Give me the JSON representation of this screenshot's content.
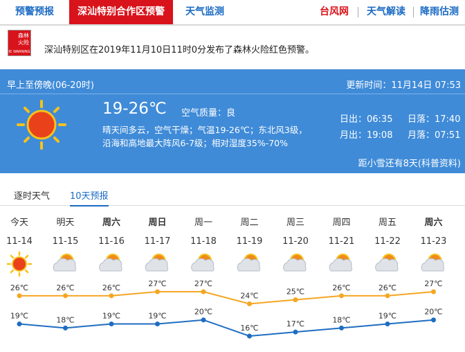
{
  "nav": {
    "left": [
      "预警预报",
      "深汕特别合作区预警",
      "天气监测"
    ],
    "right": [
      "台风网",
      "天气解读",
      "降雨估测"
    ]
  },
  "warning": {
    "icon_top": "森林火险",
    "icon_bottom": "红 WARNING",
    "text": "深汕特别区在2019年11月10日11时0分发布了森林火险红色预警。"
  },
  "today": {
    "period": "早上至傍晚(06-20时)",
    "updated": "更新时间：11月14日 07:53",
    "temp": "19-26℃",
    "air": "空气质量：良",
    "desc1": "晴天间多云，空气干燥；气温19-26℃；东北风3级，",
    "desc2": "沿海和高地最大阵风6-7级；相对湿度35%-70%",
    "sunrise": "日出：06:35",
    "sunset": "日落：17:40",
    "moonrise": "月出：19:08",
    "moonset": "月落：07:51",
    "solar_term": "距小雪还有8天(科普资料)"
  },
  "forecast_tabs": [
    "逐时天气",
    "10天预报"
  ],
  "forecast": {
    "days": [
      "今天",
      "明天",
      "周六",
      "周日",
      "周一",
      "周二",
      "周三",
      "周四",
      "周五",
      "周六"
    ],
    "dates": [
      "11-14",
      "11-15",
      "11-16",
      "11-17",
      "11-18",
      "11-19",
      "11-20",
      "11-21",
      "11-22",
      "11-23"
    ],
    "high": {
      "color": "#f5a623",
      "values": [
        26,
        26,
        26,
        27,
        27,
        24,
        25,
        26,
        26,
        27
      ],
      "value_labels": [
        "26℃",
        "26℃",
        "26℃",
        "27℃",
        "27℃",
        "24℃",
        "25℃",
        "26℃",
        "26℃",
        "27℃"
      ]
    },
    "low": {
      "color": "#1f6dc2",
      "values": [
        19,
        18,
        19,
        19,
        20,
        16,
        17,
        18,
        19,
        20
      ],
      "value_labels": [
        "19℃",
        "18℃",
        "19℃",
        "19℃",
        "20℃",
        "16℃",
        "17℃",
        "18℃",
        "19℃",
        "20℃"
      ]
    }
  }
}
